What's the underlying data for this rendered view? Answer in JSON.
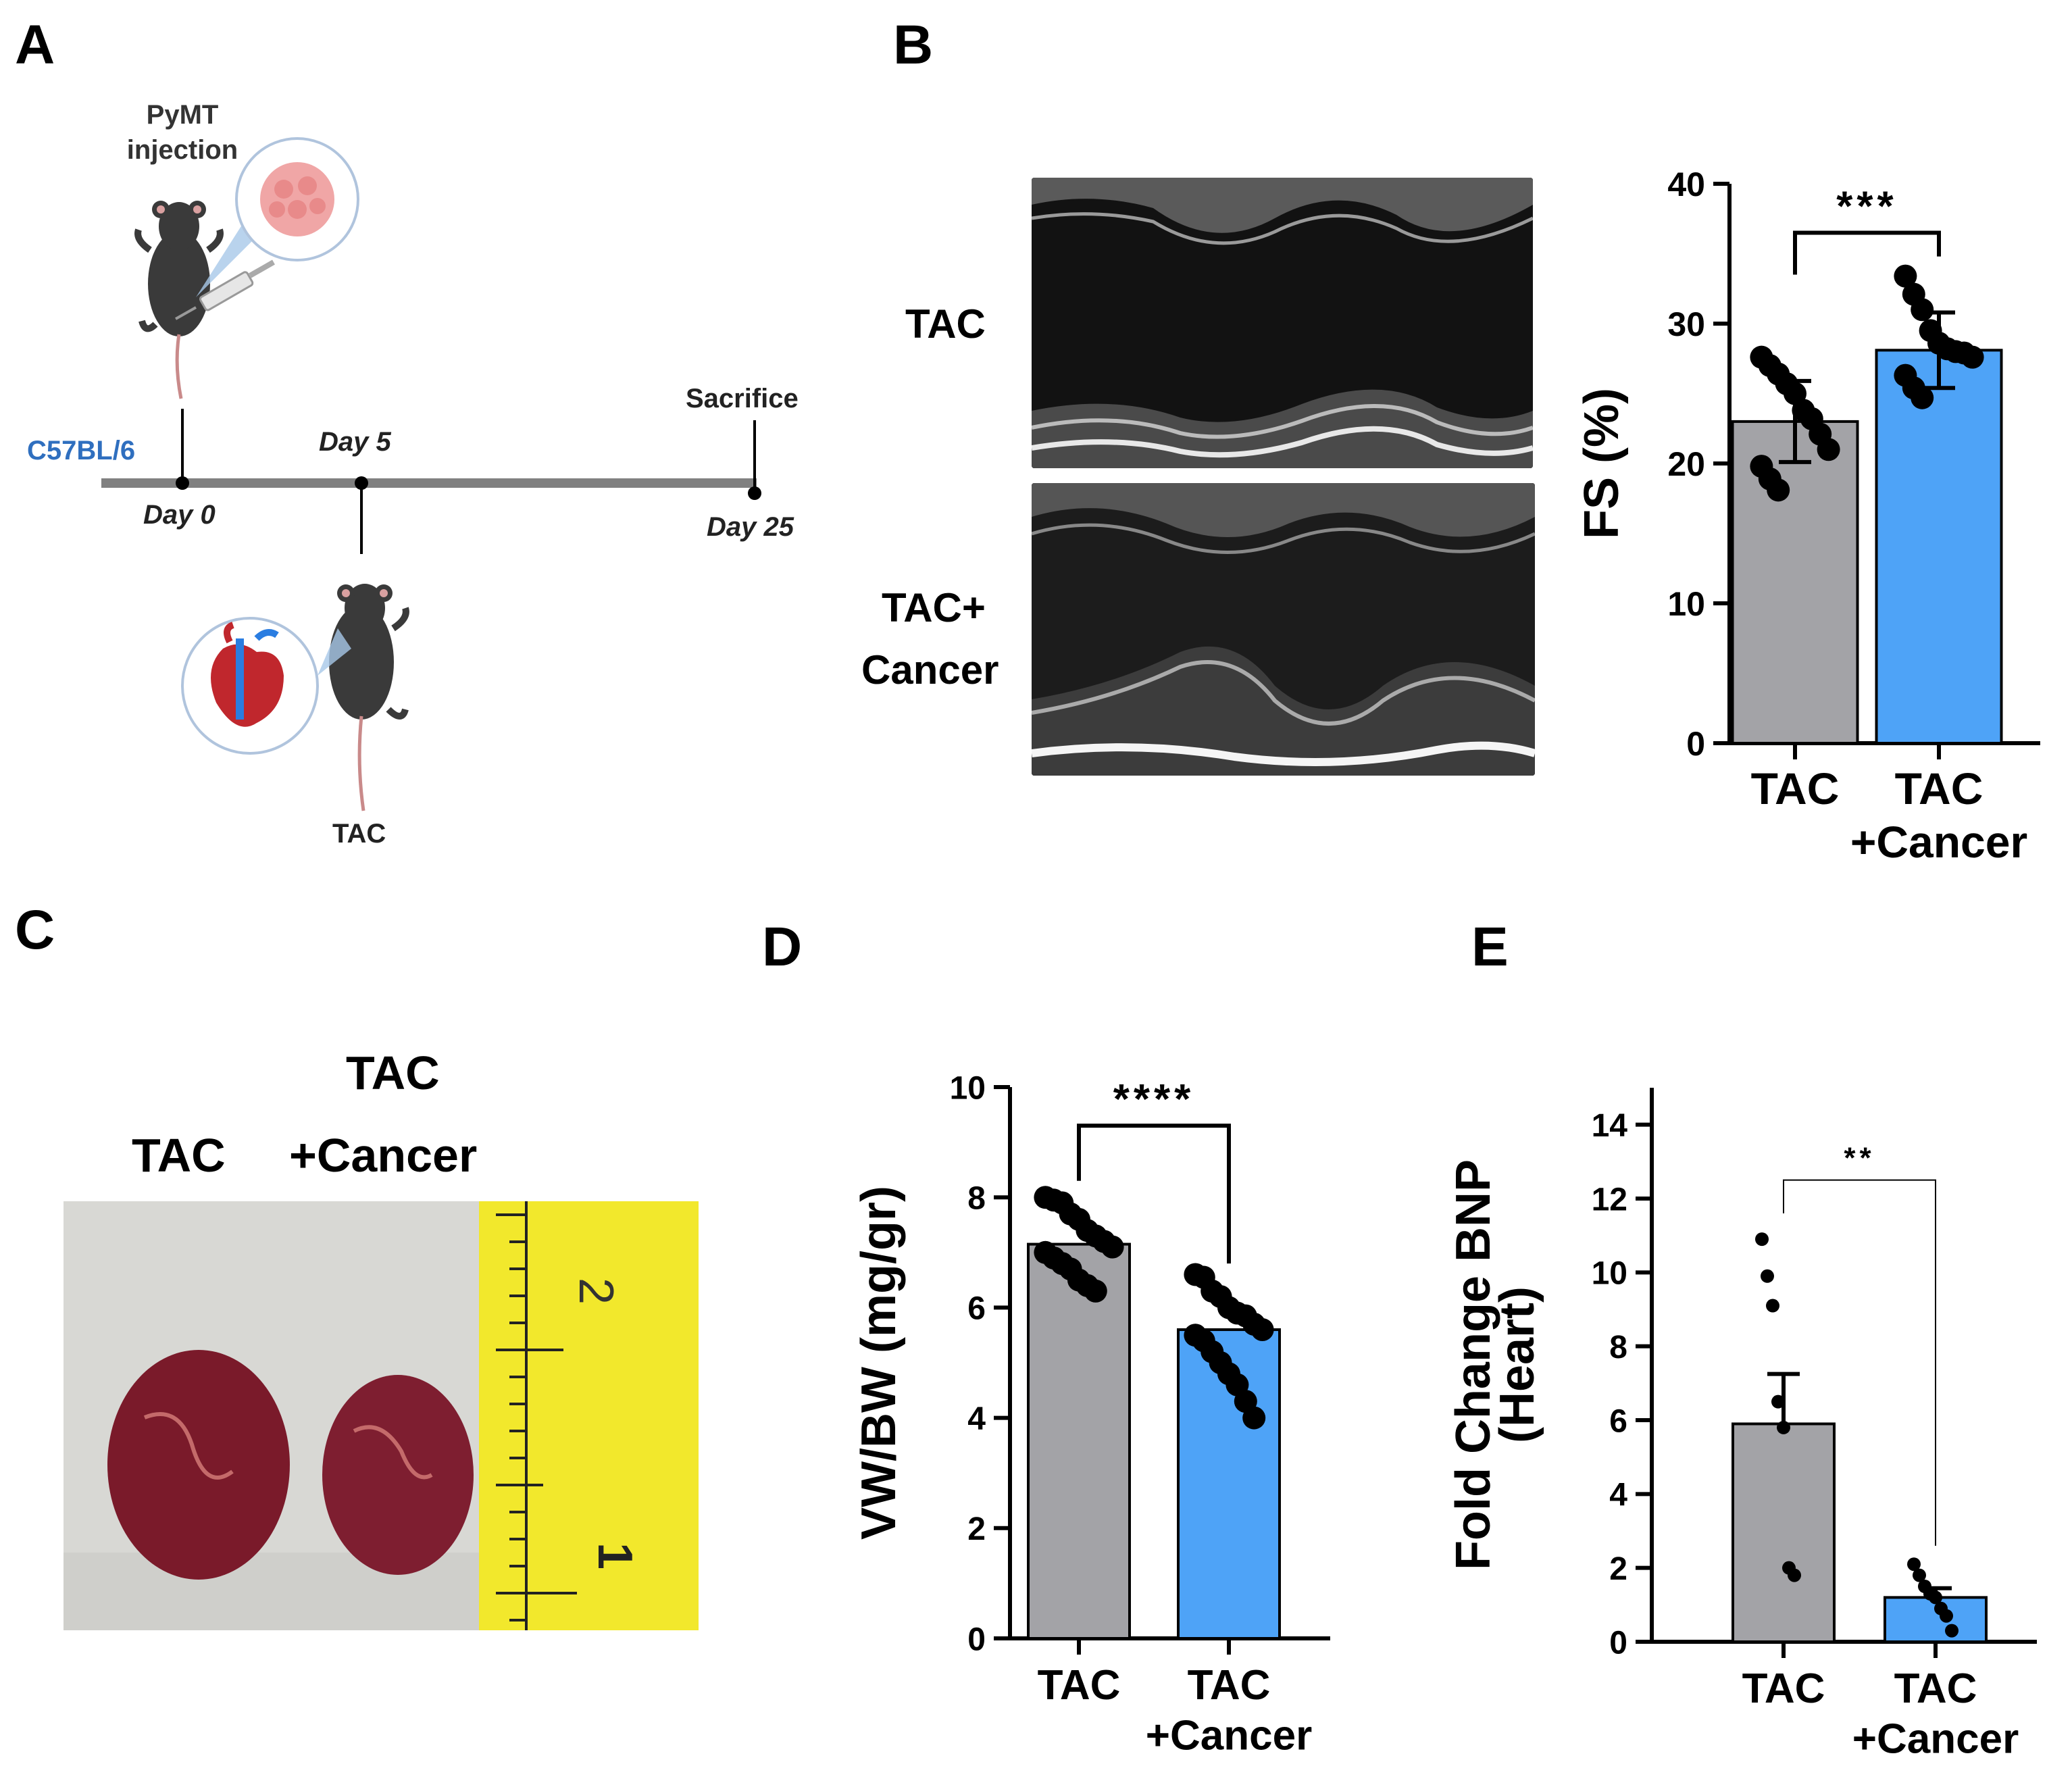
{
  "panels": {
    "a": "A",
    "b": "B",
    "c": "C",
    "d": "D",
    "e": "E"
  },
  "panelA": {
    "injection_label_1": "PyMT",
    "injection_label_2": "injection",
    "strain": "C57BL/6",
    "day0": "Day 0",
    "day5": "Day 5",
    "day25": "Day 25",
    "sacrifice": "Sacrifice",
    "tac": "TAC",
    "colors": {
      "strain": "#2f6fbf",
      "timeline": "#808080",
      "mouse": "#3a3a3a",
      "tumor": "#e88a8a",
      "heart": "#c0272d",
      "vessel": "#2a7de1"
    }
  },
  "panelB": {
    "row1": "TAC",
    "row2a": "TAC+",
    "row2b": "Cancer"
  },
  "panelC": {
    "header_top": "TAC",
    "header_left": "TAC",
    "header_right": "+Cancer",
    "ruler_2": "2",
    "ruler_1": "1",
    "colors": {
      "ruler": "#f2e82c",
      "heart": "#7a1a2a",
      "bg": "#d8d8d4"
    }
  },
  "colors": {
    "gray": "#a3a3a7",
    "blue": "#4ea3f7",
    "black": "#000000"
  },
  "chart_data": [
    {
      "id": "B",
      "type": "bar",
      "ylabel": "FS (%)",
      "ylim": [
        0,
        40
      ],
      "yticks": [
        0,
        10,
        20,
        30,
        40
      ],
      "categories": [
        [
          "TAC"
        ],
        [
          "TAC",
          "+Cancer"
        ]
      ],
      "values": [
        23.0,
        28.1
      ],
      "sd": [
        2.9,
        2.7
      ],
      "points": [
        [
          27.6,
          27.0,
          26.4,
          25.7,
          25.0,
          23.8,
          23.2,
          22.1,
          21.0,
          19.8,
          18.9,
          18.1
        ],
        [
          33.4,
          32.1,
          31.0,
          29.5,
          28.6,
          28.2,
          28.0,
          27.9,
          27.6,
          26.3,
          25.4,
          24.7
        ]
      ],
      "significance": "***"
    },
    {
      "id": "D",
      "type": "bar",
      "ylabel": "VW/BW (mg/gr)",
      "ylim": [
        0,
        10
      ],
      "yticks": [
        0,
        2,
        4,
        6,
        8,
        10
      ],
      "categories": [
        [
          "TAC"
        ],
        [
          "TAC",
          "+Cancer"
        ]
      ],
      "values": [
        7.15,
        5.6
      ],
      "sem": [
        0.0,
        0.0
      ],
      "points": [
        [
          8.0,
          7.95,
          7.9,
          7.7,
          7.6,
          7.4,
          7.3,
          7.2,
          7.1,
          7.0,
          6.9,
          6.8,
          6.7,
          6.5,
          6.4,
          6.3
        ],
        [
          6.6,
          6.55,
          6.3,
          6.2,
          6.0,
          5.9,
          5.85,
          5.7,
          5.6,
          5.5,
          5.4,
          5.2,
          5.0,
          4.8,
          4.6,
          4.3,
          4.0
        ]
      ],
      "significance": "****"
    },
    {
      "id": "E",
      "type": "bar",
      "ylabel": "Fold Change BNP",
      "ylabel2": "(Heart)",
      "ylim": [
        0,
        15
      ],
      "yticks": [
        0,
        2,
        4,
        6,
        8,
        10,
        12,
        14
      ],
      "categories": [
        [
          "TAC"
        ],
        [
          "TAC",
          "+Cancer"
        ]
      ],
      "values": [
        5.9,
        1.2
      ],
      "sem": [
        1.35,
        0.25
      ],
      "points": [
        [
          10.9,
          9.9,
          9.1,
          6.5,
          5.8,
          2.0,
          1.8
        ],
        [
          2.1,
          1.8,
          1.5,
          1.3,
          1.2,
          0.9,
          0.7,
          0.3
        ]
      ],
      "significance": "**"
    }
  ]
}
